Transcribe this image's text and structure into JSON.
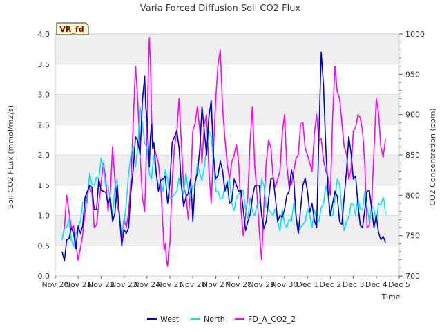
{
  "chart_data": {
    "type": "line",
    "title": "Varia Forced Diffusion Soil CO2 Flux",
    "xlabel": "Time",
    "ylabel": "Soil CO2 FLux (mmol/m2/s)",
    "y2label": "CO2 Concentration (ppm)",
    "badge": "VR_fd",
    "x_ticks": [
      "Nov 20",
      "Nov 21",
      "Nov 22",
      "Nov 23",
      "Nov 24",
      "Nov 25",
      "Nov 26",
      "Nov 27",
      "Nov 28",
      "Nov 29",
      "Nov 30",
      "Dec 1",
      "Dec 2",
      "Dec 3",
      "Dec 4",
      "Dec 5"
    ],
    "xlim": [
      0,
      15
    ],
    "ylim": [
      0,
      4.0
    ],
    "y_ticks": [
      "0.0",
      "0.5",
      "1.0",
      "1.5",
      "2.0",
      "2.5",
      "3.0",
      "3.5",
      "4.0"
    ],
    "y2lim": [
      700,
      1000
    ],
    "y2_ticks": [
      "700",
      "750",
      "800",
      "850",
      "900",
      "950",
      "1000"
    ],
    "grid": "horizontal bands",
    "legend_position": "bottom",
    "series": [
      {
        "name": "West",
        "color": "#0000cc",
        "axis": "left",
        "x": [
          0.3,
          0.5,
          0.7,
          0.9,
          1.1,
          1.3,
          1.5,
          1.7,
          1.9,
          2.1,
          2.3,
          2.5,
          2.7,
          2.9,
          3.1,
          3.3,
          3.5,
          3.7,
          3.9,
          4.0,
          4.1,
          4.2,
          4.3,
          4.5,
          4.7,
          4.9,
          5.1,
          5.3,
          5.5,
          5.7,
          5.9,
          6.0,
          6.2,
          6.4,
          6.6,
          6.8,
          7.0,
          7.2,
          7.4,
          7.6,
          7.8,
          8.0,
          8.2,
          8.4,
          8.6,
          8.8,
          9.0,
          9.2,
          9.4,
          9.6,
          9.8,
          10.0,
          10.2,
          10.4,
          10.6,
          10.8,
          11.0,
          11.2,
          11.4,
          11.6,
          11.8,
          12.0,
          12.2,
          12.4,
          12.6,
          12.8,
          13.0,
          13.2,
          13.4,
          13.6,
          13.8,
          14.0,
          14.2,
          14.4
        ],
        "values": [
          0.4,
          0.6,
          0.8,
          0.45,
          0.7,
          1.3,
          1.5,
          1.1,
          1.6,
          1.4,
          1.2,
          0.9,
          1.5,
          0.5,
          0.7,
          1.4,
          2.3,
          2.0,
          3.3,
          2.6,
          1.8,
          2.5,
          2.2,
          1.4,
          1.6,
          1.2,
          2.2,
          2.4,
          1.5,
          1.3,
          1.6,
          0.9,
          1.7,
          2.8,
          2.0,
          2.9,
          1.6,
          1.9,
          1.4,
          1.2,
          1.6,
          1.4,
          1.1,
          0.9,
          1.3,
          1.5,
          1.0,
          0.9,
          1.6,
          1.3,
          1.0,
          1.1,
          1.4,
          1.6,
          0.7,
          1.5,
          1.4,
          1.2,
          0.8,
          3.7,
          2.1,
          1.0,
          1.4,
          0.9,
          1.3,
          2.3,
          1.6,
          1.2,
          0.8,
          1.4,
          1.1,
          1.0,
          0.6,
          0.55
        ]
      },
      {
        "name": "North",
        "color": "#00e5ff",
        "axis": "left",
        "x": [
          0.3,
          0.5,
          0.7,
          0.9,
          1.1,
          1.3,
          1.5,
          1.7,
          1.9,
          2.1,
          2.3,
          2.5,
          2.7,
          2.9,
          3.1,
          3.3,
          3.5,
          3.7,
          3.9,
          4.1,
          4.3,
          4.5,
          4.7,
          4.9,
          5.1,
          5.3,
          5.5,
          5.7,
          5.9,
          6.1,
          6.3,
          6.5,
          6.7,
          6.9,
          7.1,
          7.3,
          7.5,
          7.7,
          7.9,
          8.1,
          8.3,
          8.5,
          8.7,
          8.9,
          9.1,
          9.3,
          9.5,
          9.7,
          9.9,
          10.1,
          10.3,
          10.5,
          10.7,
          10.9,
          11.1,
          11.3,
          11.5,
          11.7,
          11.9,
          12.1,
          12.3,
          12.5,
          12.7,
          12.9,
          13.1,
          13.3,
          13.5,
          13.7,
          13.9,
          14.1,
          14.3,
          14.4
        ],
        "values": [
          0.6,
          0.8,
          0.6,
          0.7,
          0.9,
          1.2,
          1.7,
          1.5,
          1.6,
          1.8,
          1.5,
          1.0,
          1.6,
          0.7,
          1.2,
          2.0,
          1.8,
          2.8,
          2.2,
          1.7,
          2.0,
          1.5,
          1.4,
          1.6,
          1.3,
          1.4,
          1.5,
          1.7,
          1.3,
          1.5,
          1.7,
          1.8,
          2.4,
          1.9,
          1.4,
          1.3,
          1.5,
          1.2,
          1.3,
          1.4,
          1.1,
          1.3,
          1.0,
          1.2,
          1.5,
          1.1,
          1.0,
          0.9,
          1.1,
          0.8,
          0.9,
          1.0,
          0.8,
          0.9,
          1.0,
          1.1,
          0.9,
          1.2,
          1.3,
          1.0,
          1.6,
          1.1,
          0.9,
          1.2,
          1.0,
          1.1,
          1.4,
          0.9,
          1.1,
          1.2,
          1.3,
          1.0
        ]
      },
      {
        "name": "FD_A_CO2_2",
        "color": "#ff00ff",
        "axis": "right",
        "x": [
          0.3,
          0.5,
          0.7,
          0.9,
          1.1,
          1.3,
          1.5,
          1.7,
          1.9,
          2.1,
          2.3,
          2.5,
          2.7,
          2.9,
          3.1,
          3.3,
          3.5,
          3.7,
          3.9,
          4.0,
          4.1,
          4.2,
          4.3,
          4.5,
          4.7,
          4.8,
          4.9,
          5.0,
          5.2,
          5.4,
          5.6,
          5.8,
          6.0,
          6.2,
          6.4,
          6.6,
          6.8,
          7.0,
          7.2,
          7.4,
          7.6,
          7.8,
          8.0,
          8.2,
          8.4,
          8.6,
          8.8,
          9.0,
          9.2,
          9.4,
          9.6,
          9.8,
          10.0,
          10.2,
          10.4,
          10.6,
          10.8,
          11.0,
          11.2,
          11.4,
          11.6,
          11.8,
          12.0,
          12.2,
          12.4,
          12.6,
          12.8,
          13.0,
          13.2,
          13.4,
          13.6,
          13.8,
          14.0,
          14.2,
          14.4
        ],
        "values": [
          745,
          800,
          760,
          740,
          735,
          780,
          810,
          760,
          790,
          840,
          780,
          860,
          790,
          745,
          760,
          820,
          960,
          850,
          780,
          880,
          995,
          900,
          860,
          840,
          760,
          740,
          712,
          740,
          860,
          920,
          810,
          770,
          880,
          910,
          840,
          900,
          790,
          920,
          980,
          870,
          820,
          850,
          840,
          750,
          800,
          910,
          800,
          720,
          840,
          860,
          810,
          830,
          900,
          810,
          830,
          850,
          890,
          850,
          830,
          900,
          870,
          830,
          800,
          960,
          920,
          860,
          820,
          880,
          900,
          880,
          760,
          790,
          920,
          860,
          870
        ]
      }
    ]
  },
  "legend": [
    {
      "name": "West",
      "color": "#0000cc"
    },
    {
      "name": "North",
      "color": "#00e5ff"
    },
    {
      "name": "FD_A_CO2_2",
      "color": "#ff00ff"
    }
  ]
}
